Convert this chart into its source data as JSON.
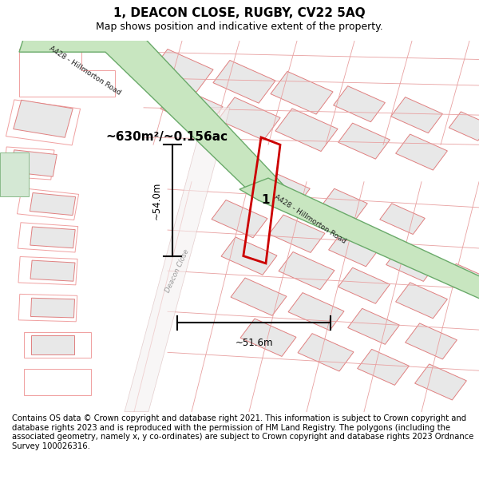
{
  "title": "1, DEACON CLOSE, RUGBY, CV22 5AQ",
  "subtitle": "Map shows position and indicative extent of the property.",
  "footer": "Contains OS data © Crown copyright and database right 2021. This information is subject to Crown copyright and database rights 2023 and is reproduced with the permission of HM Land Registry. The polygons (including the associated geometry, namely x, y co-ordinates) are subject to Crown copyright and database rights 2023 Ordnance Survey 100026316.",
  "road_label": "A428 - Hillmorton Road",
  "road_label2": "A428 - Hillmorton Road",
  "street_label": "Deacon Close",
  "plot_color": "#cc0000",
  "plot_label": "1",
  "area_label": "~630m²/~0.156ac",
  "dim_h": "~54.0m",
  "dim_w": "~51.6m",
  "title_fontsize": 11,
  "subtitle_fontsize": 9,
  "footer_fontsize": 7.2,
  "map_bg": "#faf8f8",
  "road_fill": "#c8e6c0",
  "road_edge": "#6aaa6a",
  "building_fill": "#e8e8e8",
  "building_edge": "#e08080",
  "outline_color": "#f0a0a0",
  "green_fill": "#d4e8d4",
  "green_edge": "#8aba8a"
}
